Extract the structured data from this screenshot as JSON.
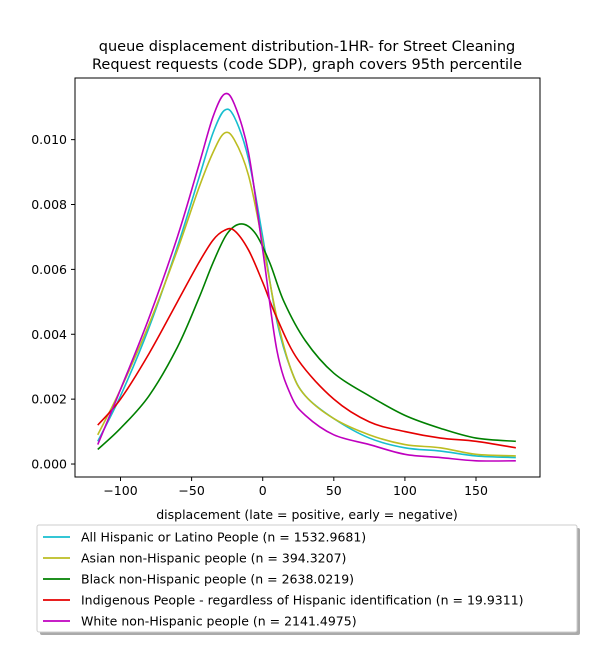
{
  "chart_data": {
    "type": "line",
    "title_lines": [
      "queue displacement distribution-1HR-  for Street Cleaning",
      "Request  requests (code SDP), graph covers 95th percentile"
    ],
    "xlabel": "displacement (late = positive, early = negative)",
    "ylabel": "",
    "xlim": [
      -132,
      195
    ],
    "ylim": [
      -0.0004,
      0.0119
    ],
    "xticks": [
      -100,
      -50,
      0,
      50,
      100,
      150
    ],
    "xtick_labels": [
      "−100",
      "−50",
      "0",
      "50",
      "100",
      "150"
    ],
    "yticks": [
      0.0,
      0.002,
      0.004,
      0.006,
      0.008,
      0.01
    ],
    "ytick_labels": [
      "0.000",
      "0.002",
      "0.004",
      "0.006",
      "0.008",
      "0.010"
    ],
    "grid": false,
    "legend_position": "below plot",
    "series": [
      {
        "name": "All Hispanic or Latino People (n = 1532.9681)",
        "color": "#17becf",
        "x": [
          -116,
          -100,
          -80,
          -60,
          -45,
          -35,
          -27,
          -20,
          -10,
          0,
          10,
          20,
          30,
          50,
          75,
          100,
          125,
          150,
          178
        ],
        "y": [
          0.0007,
          0.0021,
          0.0042,
          0.0067,
          0.0088,
          0.0102,
          0.0109,
          0.0107,
          0.0094,
          0.007,
          0.0044,
          0.0029,
          0.0021,
          0.0014,
          0.0008,
          0.0005,
          0.0004,
          0.00025,
          0.0002
        ]
      },
      {
        "name": "Asian non-Hispanic people (n = 394.3207)",
        "color": "#bcbd22",
        "x": [
          -116,
          -100,
          -80,
          -60,
          -45,
          -35,
          -27,
          -20,
          -10,
          0,
          10,
          20,
          30,
          50,
          75,
          100,
          125,
          150,
          178
        ],
        "y": [
          0.0009,
          0.0023,
          0.0043,
          0.0066,
          0.0085,
          0.0096,
          0.0102,
          0.01,
          0.0089,
          0.0068,
          0.0045,
          0.0029,
          0.0021,
          0.0014,
          0.0009,
          0.0006,
          0.0005,
          0.0003,
          0.00025
        ]
      },
      {
        "name": "Black non-Hispanic people (n = 2638.0219)",
        "color": "#008000",
        "x": [
          -116,
          -100,
          -80,
          -60,
          -45,
          -35,
          -25,
          -15,
          -5,
          5,
          15,
          30,
          50,
          75,
          100,
          125,
          150,
          178
        ],
        "y": [
          0.00045,
          0.0011,
          0.0021,
          0.0036,
          0.0051,
          0.0062,
          0.0071,
          0.0074,
          0.0071,
          0.0062,
          0.005,
          0.0038,
          0.0028,
          0.0021,
          0.0015,
          0.0011,
          0.0008,
          0.0007
        ]
      },
      {
        "name": "Indigenous People - regardless of Hispanic identification (n = 19.9311)",
        "color": "#e50000",
        "x": [
          -116,
          -100,
          -80,
          -60,
          -45,
          -35,
          -27,
          -20,
          -10,
          0,
          10,
          25,
          50,
          75,
          100,
          125,
          150,
          178
        ],
        "y": [
          0.0012,
          0.002,
          0.0034,
          0.005,
          0.0062,
          0.0069,
          0.0072,
          0.0072,
          0.0066,
          0.0056,
          0.0045,
          0.0032,
          0.002,
          0.0013,
          0.001,
          0.0008,
          0.0007,
          0.0005
        ]
      },
      {
        "name": "White non-Hispanic people (n = 2141.4975)",
        "color": "#bf00bf",
        "x": [
          -116,
          -100,
          -80,
          -60,
          -45,
          -35,
          -27,
          -20,
          -10,
          0,
          10,
          20,
          30,
          50,
          75,
          100,
          125,
          150,
          178
        ],
        "y": [
          0.0006,
          0.0023,
          0.0045,
          0.007,
          0.0092,
          0.0107,
          0.0114,
          0.0111,
          0.0096,
          0.0066,
          0.0035,
          0.0021,
          0.0015,
          0.0009,
          0.0006,
          0.0003,
          0.0002,
          0.0001,
          0.0001
        ]
      }
    ]
  }
}
